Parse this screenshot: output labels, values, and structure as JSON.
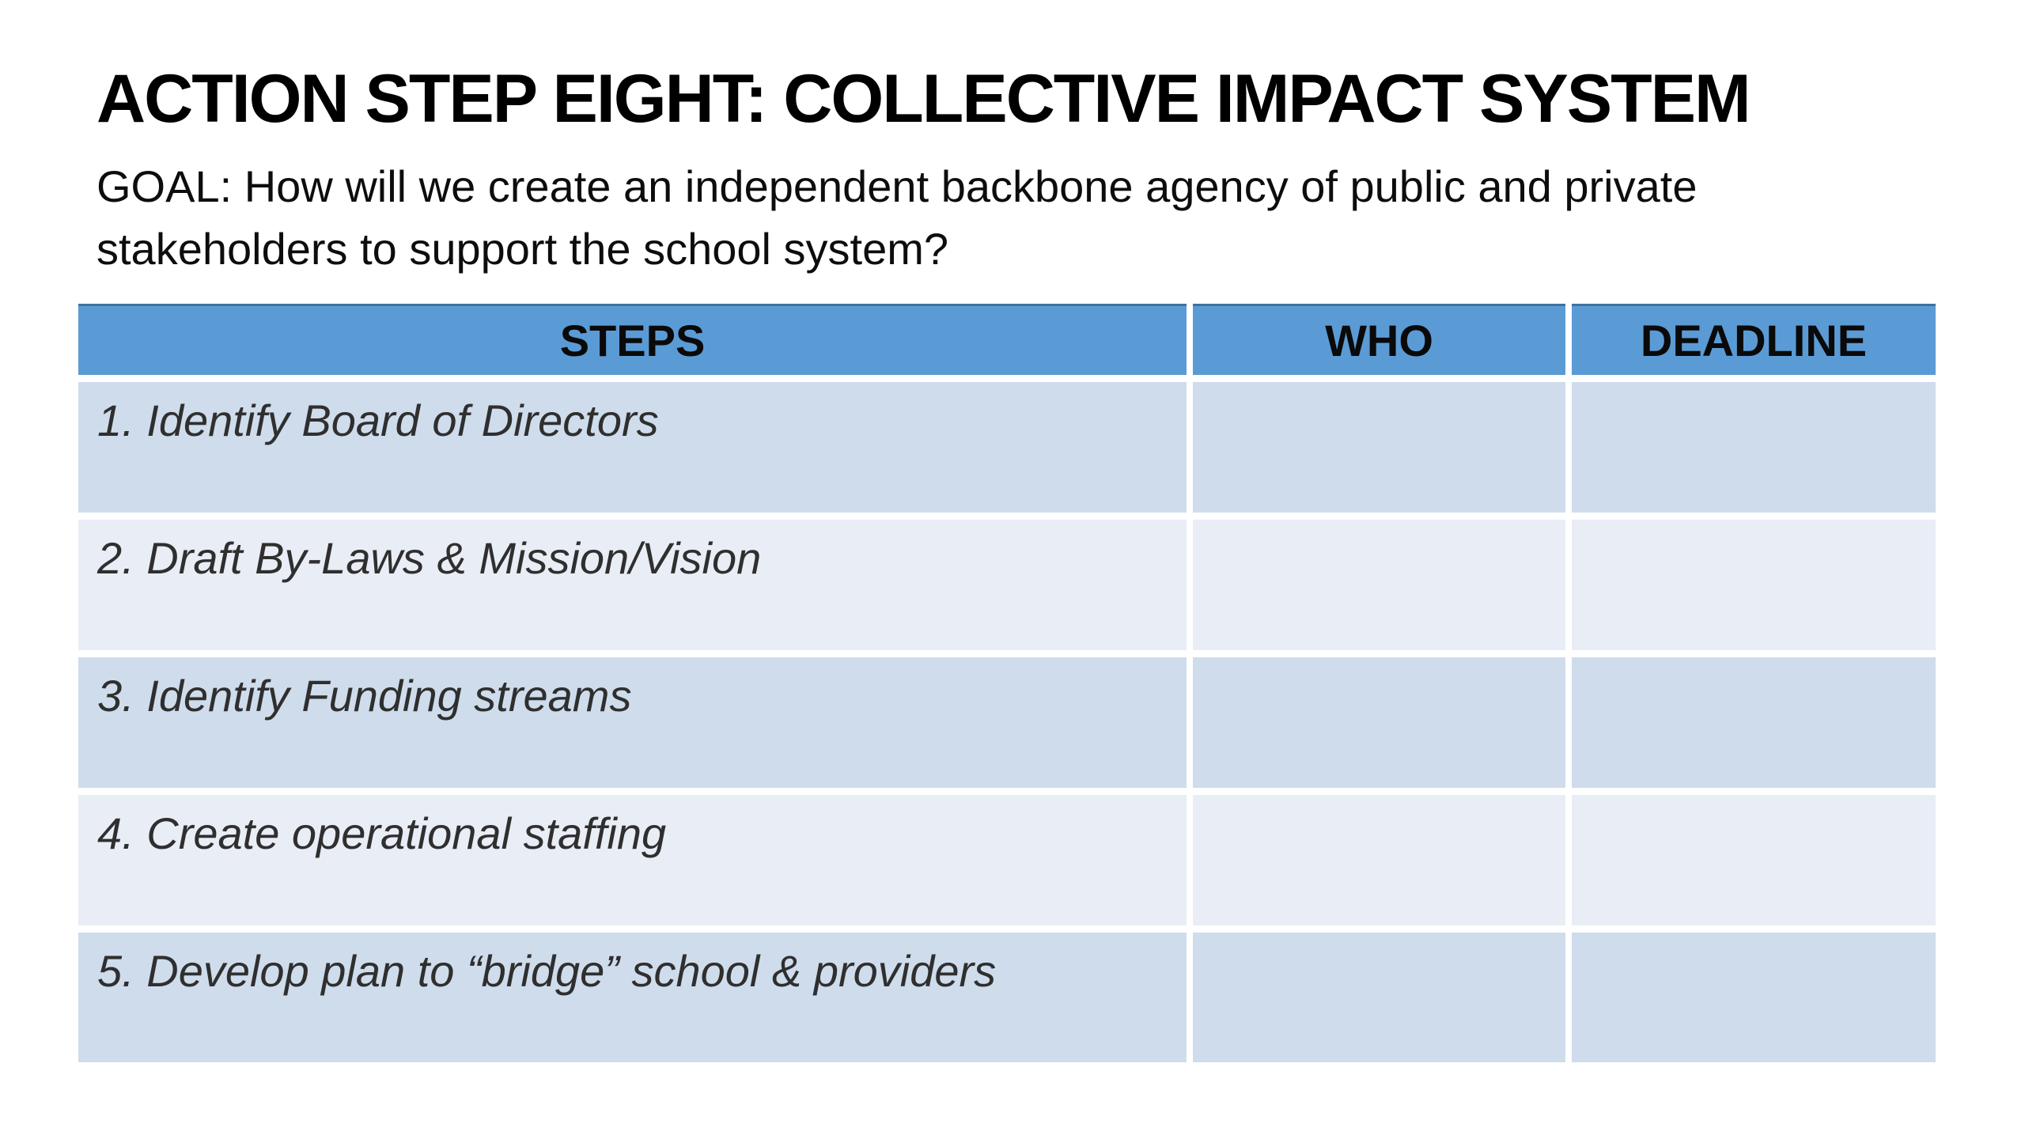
{
  "slide": {
    "title": "ACTION STEP EIGHT: COLLECTIVE IMPACT SYSTEM",
    "goal": {
      "line1": "GOAL: How will we create an independent backbone agency of public and private",
      "line2": "stakeholders to support the school system?"
    },
    "table": {
      "columns": [
        "STEPS",
        "WHO",
        "DEADLINE"
      ],
      "rows": [
        {
          "step": "1. Identify Board of Directors",
          "who": "",
          "deadline": ""
        },
        {
          "step": "2. Draft By-Laws & Mission/Vision",
          "who": "",
          "deadline": ""
        },
        {
          "step": "3. Identify Funding streams",
          "who": "",
          "deadline": ""
        },
        {
          "step": "4. Create operational staffing",
          "who": "",
          "deadline": ""
        },
        {
          "step": "5. Develop plan to “bridge” school & providers",
          "who": "",
          "deadline": ""
        }
      ]
    },
    "colors": {
      "header_bg": "#5b9bd5",
      "header_border_top": "#41719c",
      "row_dark": "#cfdcec",
      "row_light": "#e9edf6",
      "title_text": "#000000",
      "row_text": "#2f2f2f"
    }
  }
}
